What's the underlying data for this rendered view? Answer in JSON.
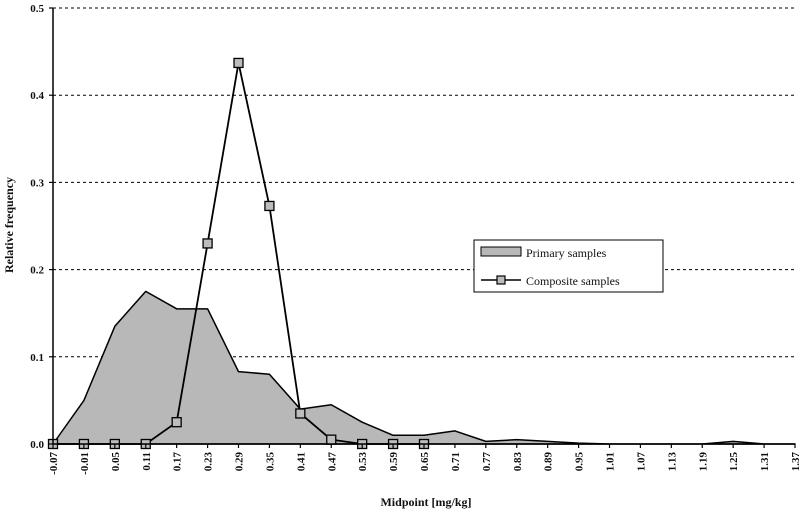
{
  "chart_data": {
    "type": "area",
    "title": "",
    "xlabel": "Midpoint [mg/kg]",
    "ylabel": "Relative frequency",
    "x": [
      -0.07,
      -0.01,
      0.05,
      0.11,
      0.17,
      0.23,
      0.29,
      0.35,
      0.41,
      0.47,
      0.53,
      0.59,
      0.65,
      0.71,
      0.77,
      0.83,
      0.89,
      0.95,
      1.01,
      1.07,
      1.13,
      1.19,
      1.25,
      1.31,
      1.37
    ],
    "xticks": [
      "-0.07",
      "-0.01",
      "0.05",
      "0.11",
      "0.17",
      "0.23",
      "0.29",
      "0.35",
      "0.41",
      "0.47",
      "0.53",
      "0.59",
      "0.65",
      "0.71",
      "0.77",
      "0.83",
      "0.89",
      "0.95",
      "1.01",
      "1.07",
      "1.13",
      "1.19",
      "1.25",
      "1.31",
      "1.37"
    ],
    "yticks": [
      "0.0",
      "0.1",
      "0.2",
      "0.3",
      "0.4",
      "0.5"
    ],
    "ylim": [
      0,
      0.5
    ],
    "grid": true,
    "legend_position": "center-right",
    "series": [
      {
        "name": "Primary samples",
        "style": "area",
        "color": "#b8b8b8",
        "values": [
          0.0,
          0.05,
          0.135,
          0.175,
          0.155,
          0.155,
          0.083,
          0.08,
          0.04,
          0.045,
          0.025,
          0.01,
          0.01,
          0.015,
          0.003,
          0.005,
          0.003,
          0.001,
          0.0,
          0.0,
          0.0,
          0.0,
          0.003,
          0.0,
          0.0
        ]
      },
      {
        "name": "Composite samples",
        "style": "line-marker",
        "color": "#000000",
        "values": [
          0.0,
          0.0,
          0.0,
          0.0,
          0.025,
          0.23,
          0.437,
          0.273,
          0.035,
          0.005,
          0.0,
          0.0,
          0.0,
          null,
          null,
          null,
          null,
          null,
          null,
          null,
          null,
          null,
          null,
          null,
          null
        ]
      }
    ]
  }
}
